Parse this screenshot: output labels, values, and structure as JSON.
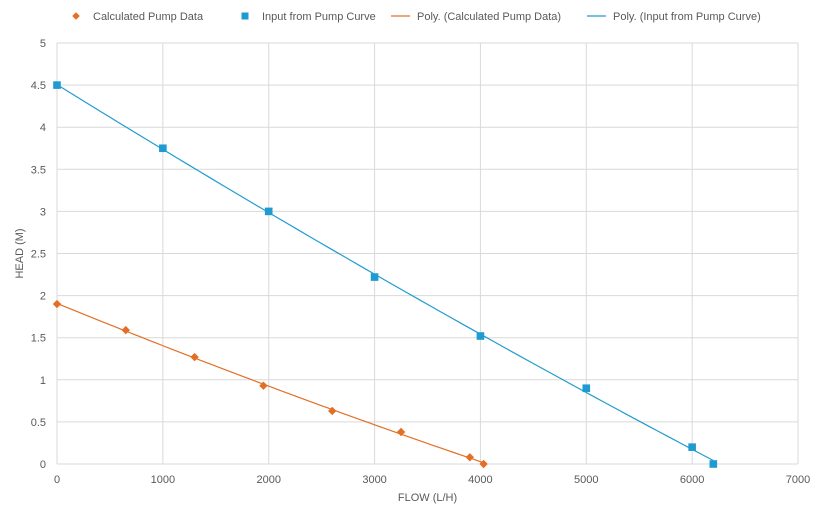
{
  "chart_data": {
    "type": "scatter",
    "title": "",
    "xlabel": "FLOW (L/H)",
    "ylabel": "HEAD (M)",
    "xlim": [
      0,
      7000
    ],
    "ylim": [
      0,
      5
    ],
    "x_ticks": [
      0,
      1000,
      2000,
      3000,
      4000,
      5000,
      6000,
      7000
    ],
    "y_ticks": [
      0,
      0.5,
      1,
      1.5,
      2,
      2.5,
      3,
      3.5,
      4,
      4.5,
      5
    ],
    "x_tick_labels": [
      "0",
      "1000",
      "2000",
      "3000",
      "4000",
      "5000",
      "6000",
      "7000"
    ],
    "y_tick_labels": [
      "0",
      "0.5",
      "1",
      "1.5",
      "2",
      "2.5",
      "3",
      "3.5",
      "4",
      "4.5",
      "5"
    ],
    "grid": true,
    "legend_position": "top",
    "series": [
      {
        "name": "Calculated Pump Data",
        "marker": "diamond",
        "color": "#E36F27",
        "points": [
          {
            "x": 0,
            "y": 1.9
          },
          {
            "x": 650,
            "y": 1.59
          },
          {
            "x": 1300,
            "y": 1.27
          },
          {
            "x": 1950,
            "y": 0.93
          },
          {
            "x": 2600,
            "y": 0.63
          },
          {
            "x": 3250,
            "y": 0.38
          },
          {
            "x": 3900,
            "y": 0.08
          },
          {
            "x": 4030,
            "y": 0.0
          }
        ]
      },
      {
        "name": "Input from Pump Curve",
        "marker": "square",
        "color": "#1F9BD1",
        "points": [
          {
            "x": 0,
            "y": 4.5
          },
          {
            "x": 1000,
            "y": 3.75
          },
          {
            "x": 2000,
            "y": 3.0
          },
          {
            "x": 3000,
            "y": 2.22
          },
          {
            "x": 4000,
            "y": 1.52
          },
          {
            "x": 5000,
            "y": 0.9
          },
          {
            "x": 6000,
            "y": 0.2
          },
          {
            "x": 6200,
            "y": 0.0
          }
        ]
      }
    ],
    "trendlines": [
      {
        "name": "Poly. (Calculated Pump Data)",
        "color": "#E36F27",
        "source_series": 0
      },
      {
        "name": "Poly. (Input from Pump Curve)",
        "color": "#1F9BD1",
        "source_series": 1
      }
    ]
  }
}
